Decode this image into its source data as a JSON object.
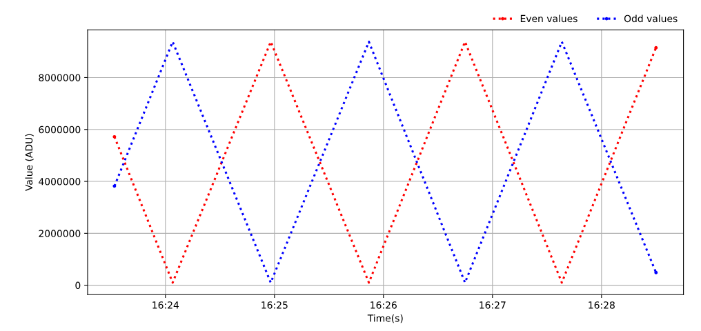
{
  "chart_data": {
    "type": "line",
    "xlabel": "Time(s)",
    "ylabel": "Value (ADU)",
    "series": [
      {
        "name": "Even values",
        "color": "#ff0000",
        "x": [
          16.3922,
          16.4011,
          16.4161,
          16.4311,
          16.4458,
          16.4606,
          16.475
        ],
        "values": [
          5720000,
          100000,
          9380000,
          100000,
          9380000,
          100000,
          9150000
        ]
      },
      {
        "name": "Odd values",
        "color": "#0000ff",
        "x": [
          16.3922,
          16.4011,
          16.4161,
          16.4311,
          16.4458,
          16.4606,
          16.475
        ],
        "values": [
          3820000,
          9380000,
          100000,
          9380000,
          100000,
          9380000,
          490000
        ]
      }
    ],
    "xlim": [
      16.3881,
      16.4792
    ],
    "xticks": [
      {
        "value": 16.4,
        "label": "16:24"
      },
      {
        "value": 16.41667,
        "label": "16:25"
      },
      {
        "value": 16.43333,
        "label": "16:26"
      },
      {
        "value": 16.45,
        "label": "16:27"
      },
      {
        "value": 16.46667,
        "label": "16:28"
      }
    ],
    "ylim": [
      -360000,
      9840000
    ],
    "yticks": [
      0,
      2000000,
      4000000,
      6000000,
      8000000
    ],
    "grid": true,
    "legend": "top right",
    "line_style": "dotted"
  }
}
